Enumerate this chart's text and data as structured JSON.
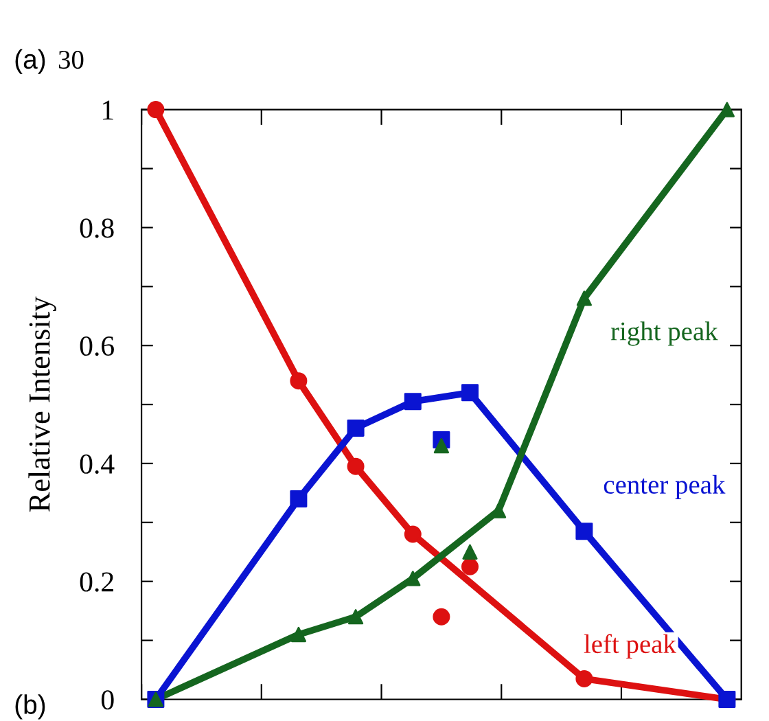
{
  "chart_data": {
    "type": "line",
    "ylabel": "Relative Intensity",
    "categories": [
      null,
      null,
      null,
      null,
      null,
      null,
      null,
      null,
      null,
      null,
      null,
      null,
      null,
      null,
      null,
      null,
      null,
      null,
      null,
      null,
      null
    ],
    "series": [
      {
        "name": "left peak",
        "color": "#dd1111",
        "marker": "circle",
        "values": [
          1.0,
          null,
          null,
          null,
          null,
          0.54,
          null,
          0.395,
          null,
          0.28,
          null,
          null,
          null,
          null,
          null,
          0.035,
          null,
          null,
          null,
          null,
          0.0
        ]
      },
      {
        "name": "center peak",
        "color": "#0a14d2",
        "marker": "square",
        "values": [
          0.0,
          null,
          null,
          null,
          null,
          0.34,
          null,
          0.46,
          null,
          0.505,
          null,
          0.52,
          null,
          null,
          null,
          0.285,
          null,
          null,
          null,
          null,
          0.0
        ]
      },
      {
        "name": "right peak",
        "color": "#15661f",
        "marker": "triangle",
        "values": [
          0.0,
          null,
          null,
          null,
          null,
          0.11,
          null,
          0.14,
          null,
          0.205,
          null,
          null,
          0.32,
          null,
          null,
          0.68,
          null,
          null,
          null,
          null,
          1.0
        ]
      },
      {
        "type": "scatter",
        "color": "#dd1111",
        "marker": "circle",
        "values": [
          null,
          null,
          null,
          null,
          null,
          null,
          null,
          null,
          null,
          null,
          0.14,
          0.225,
          null,
          null,
          null,
          null,
          null,
          null,
          null,
          null,
          null
        ]
      },
      {
        "type": "scatter",
        "color": "#0a14d2",
        "marker": "square",
        "values": [
          null,
          null,
          null,
          null,
          null,
          null,
          null,
          null,
          null,
          null,
          0.44,
          null,
          null,
          null,
          null,
          null,
          null,
          null,
          null,
          null,
          null
        ]
      },
      {
        "type": "scatter",
        "color": "#15661f",
        "marker": "triangle",
        "values": [
          null,
          null,
          null,
          null,
          null,
          null,
          null,
          null,
          null,
          null,
          0.43,
          0.25,
          null,
          null,
          null,
          null,
          null,
          null,
          null,
          null,
          null
        ]
      }
    ],
    "ylim": [
      0,
      1
    ],
    "yticks": [
      0,
      {
        "value": 0.1,
        "label": null
      },
      0.2,
      {
        "value": 0.3,
        "label": null
      },
      0.4,
      {
        "value": 0.5,
        "label": null
      },
      0.6,
      {
        "value": 0.7,
        "label": null
      },
      0.8,
      {
        "value": 0.9,
        "label": null
      },
      1
    ],
    "tick_labels": "y",
    "grid": false,
    "legend": false,
    "annotations": [
      "(a)",
      "30",
      "(b)"
    ]
  }
}
